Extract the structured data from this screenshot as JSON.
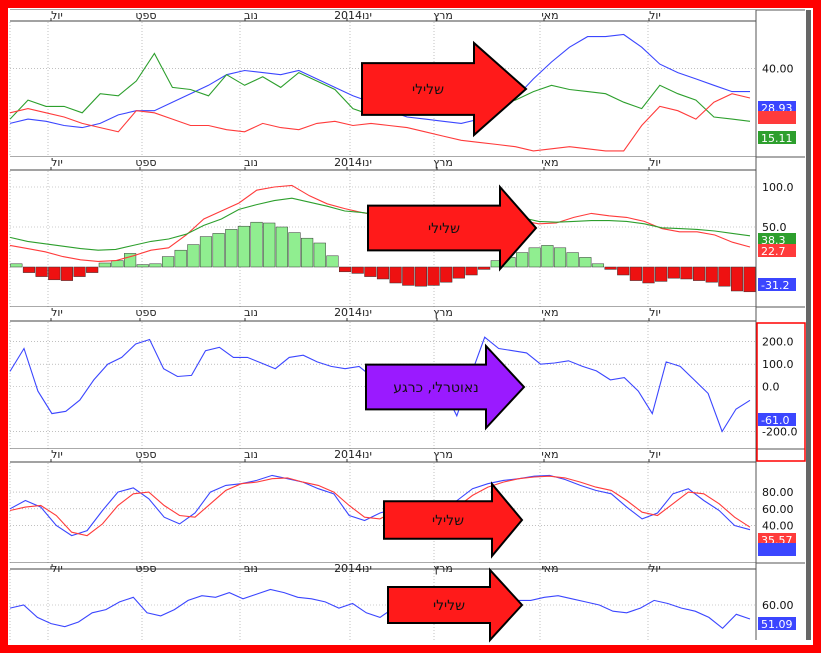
{
  "colors": {
    "frame": "#ff0000",
    "blue": "#3b46ff",
    "red": "#ff3b3b",
    "green": "#2d9f2d",
    "hist_pos": "#90ee90",
    "hist_neg": "#ee1111",
    "arrow_red": "#ff1a1a",
    "arrow_purple": "#9a1aff",
    "grid": "#9a9a9a"
  },
  "months": [
    "יול",
    "ספט",
    "נוב",
    "2014ינו",
    "מרץ",
    "מאי",
    "יול"
  ],
  "chart_data": [
    {
      "type": "line",
      "ylim": [
        0,
        60
      ],
      "yticks": [
        "40.00"
      ],
      "series": [
        {
          "color": "blue",
          "values": [
            14,
            16,
            15,
            13,
            12,
            14,
            18,
            20,
            20,
            24,
            28,
            32,
            37,
            39,
            38,
            37,
            39,
            35,
            31,
            27,
            24,
            20,
            17,
            16,
            15,
            14,
            16,
            20,
            26,
            35,
            43,
            50,
            55,
            55,
            56,
            50,
            42,
            38,
            35,
            32,
            29,
            29
          ]
        },
        {
          "color": "green",
          "values": [
            16,
            25,
            22,
            22,
            19,
            28,
            27,
            34,
            47,
            31,
            30,
            27,
            37,
            32,
            36,
            31,
            38,
            34,
            30,
            21,
            18,
            18,
            20,
            21,
            21,
            21,
            23,
            24,
            25,
            29,
            32,
            30,
            29,
            28,
            24,
            21,
            32,
            28,
            25,
            17,
            16,
            15
          ]
        },
        {
          "color": "red",
          "values": [
            19,
            21,
            19,
            17,
            14,
            12,
            10,
            20,
            19,
            16,
            13,
            13,
            11,
            10,
            14,
            12,
            11,
            14,
            15,
            13,
            14,
            13,
            12,
            10,
            8,
            6,
            5,
            4,
            3,
            1,
            2,
            3,
            2,
            1,
            1,
            13,
            22,
            20,
            16,
            24,
            28,
            26
          ]
        }
      ],
      "price_tags": [
        {
          "value": "28.93",
          "color": "blue"
        },
        {
          "value": "",
          "color": "red"
        },
        {
          "value": "15.11",
          "color": "green"
        }
      ],
      "signal": {
        "text": "שלילי",
        "color": "arrow_red"
      }
    },
    {
      "type": "bar",
      "ylim": [
        -45,
        115
      ],
      "yticks": [
        "100.0",
        "50.0"
      ],
      "histogram": [
        4,
        -7,
        -12,
        -16,
        -17,
        -12,
        -7,
        5,
        8,
        17,
        3,
        4,
        13,
        21,
        28,
        38,
        42,
        47,
        51,
        56,
        55,
        50,
        43,
        36,
        30,
        14,
        -6,
        -8,
        -12,
        -15,
        -20,
        -23,
        -24,
        -23,
        -19,
        -14,
        -10,
        -3,
        8,
        12,
        18,
        24,
        27,
        24,
        18,
        12,
        4,
        -3,
        -10,
        -17,
        -20,
        -18,
        -14,
        -15,
        -17,
        -19,
        -24,
        -30,
        -31
      ],
      "series": [
        {
          "color": "red",
          "values": [
            27,
            23,
            19,
            13,
            9,
            7,
            8,
            14,
            21,
            24,
            40,
            60,
            70,
            80,
            96,
            100,
            102,
            89,
            79,
            73,
            68,
            64,
            60,
            58,
            58,
            59,
            61,
            63,
            64,
            58,
            54,
            55,
            62,
            67,
            64,
            62,
            57,
            48,
            44,
            44,
            40,
            31,
            25
          ]
        },
        {
          "color": "green",
          "values": [
            37,
            32,
            29,
            26,
            23,
            21,
            22,
            27,
            32,
            35,
            41,
            52,
            60,
            72,
            78,
            83,
            86,
            81,
            76,
            70,
            68,
            65,
            63,
            61,
            58,
            59,
            60,
            62,
            64,
            62,
            57,
            56,
            57,
            58,
            58,
            57,
            54,
            49,
            48,
            47,
            45,
            42,
            39
          ]
        }
      ],
      "price_tags": [
        {
          "value": "38.3",
          "color": "green"
        },
        {
          "value": "22.7",
          "color": "red"
        },
        {
          "value": "-31.2",
          "color": "blue"
        }
      ],
      "signal": {
        "text": "שלילי",
        "color": "arrow_red"
      }
    },
    {
      "type": "line",
      "ylim": [
        -260,
        270
      ],
      "yticks": [
        "200.0",
        "100.0",
        "0.0",
        "-200.0"
      ],
      "series": [
        {
          "color": "blue",
          "values": [
            68,
            170,
            -20,
            -120,
            -110,
            -60,
            30,
            100,
            130,
            190,
            210,
            80,
            45,
            50,
            160,
            175,
            130,
            130,
            105,
            80,
            130,
            140,
            110,
            90,
            80,
            90,
            40,
            10,
            -5,
            -40,
            40,
            -5,
            -130,
            50,
            220,
            170,
            160,
            150,
            100,
            105,
            115,
            90,
            70,
            30,
            40,
            -20,
            -120,
            110,
            90,
            30,
            -30,
            -200,
            -100,
            -61
          ]
        }
      ],
      "price_tags": [
        {
          "value": "-61.0",
          "color": "blue"
        }
      ],
      "signal": {
        "text": "נאוטרלי, כרגע",
        "color": "arrow_purple"
      }
    },
    {
      "type": "line",
      "ylim": [
        0,
        110
      ],
      "yticks": [
        "80.00",
        "60.00",
        "40.00"
      ],
      "series": [
        {
          "color": "blue",
          "values": [
            60,
            70,
            62,
            40,
            28,
            34,
            58,
            80,
            85,
            72,
            50,
            42,
            55,
            80,
            88,
            90,
            94,
            100,
            96,
            92,
            84,
            78,
            52,
            46,
            55,
            60,
            44,
            38,
            55,
            70,
            84,
            90,
            94,
            96,
            99,
            100,
            95,
            88,
            82,
            78,
            62,
            48,
            55,
            78,
            84,
            70,
            58,
            40,
            35
          ]
        },
        {
          "color": "red",
          "values": [
            58,
            62,
            64,
            52,
            32,
            28,
            42,
            64,
            78,
            80,
            64,
            52,
            50,
            66,
            82,
            90,
            92,
            96,
            97,
            92,
            88,
            80,
            64,
            50,
            48,
            58,
            54,
            44,
            48,
            62,
            76,
            86,
            92,
            96,
            98,
            99,
            97,
            92,
            86,
            82,
            70,
            56,
            52,
            66,
            80,
            78,
            66,
            50,
            38
          ]
        }
      ],
      "price_tags": [
        {
          "value": "35.57",
          "color": "red"
        },
        {
          "value": "",
          "color": "blue"
        }
      ],
      "signal": {
        "text": "שלילי",
        "color": "arrow_red"
      }
    },
    {
      "type": "line",
      "ylim": [
        40,
        80
      ],
      "yticks": [
        "60.00"
      ],
      "series": [
        {
          "color": "blue",
          "values": [
            58,
            60,
            52,
            48,
            46,
            49,
            55,
            57,
            62,
            65,
            55,
            53,
            57,
            63,
            66,
            65,
            68,
            64,
            67,
            70,
            68,
            65,
            64,
            62,
            58,
            61,
            55,
            52,
            58,
            56,
            54,
            57,
            62,
            65,
            63,
            64,
            62,
            63,
            63,
            65,
            66,
            64,
            62,
            60,
            56,
            55,
            58,
            63,
            61,
            58,
            56,
            52,
            45,
            54,
            51
          ]
        }
      ],
      "price_tags": [
        {
          "value": "51.09",
          "color": "blue"
        }
      ],
      "signal": {
        "text": "שלילי",
        "color": "arrow_red"
      }
    }
  ]
}
